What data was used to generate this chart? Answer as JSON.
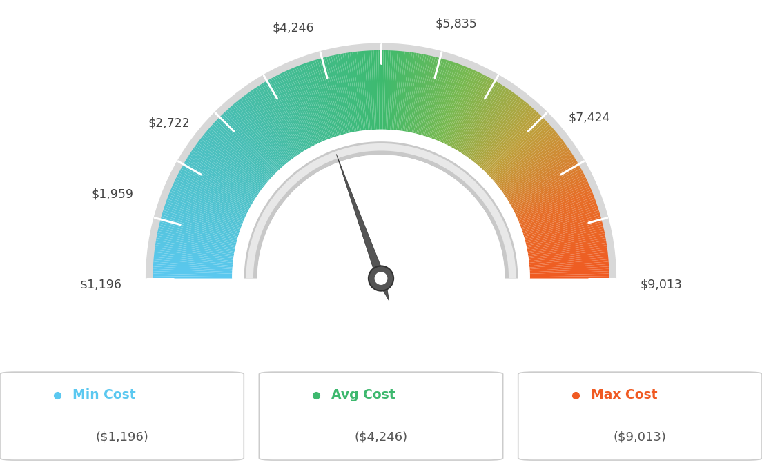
{
  "min_value": 1196,
  "max_value": 9013,
  "avg_value": 4246,
  "labels": [
    "$1,196",
    "$1,959",
    "$2,722",
    "$4,246",
    "$5,835",
    "$7,424",
    "$9,013"
  ],
  "label_values": [
    1196,
    1959,
    2722,
    4246,
    5835,
    7424,
    9013
  ],
  "legend_min_label": "Min Cost",
  "legend_avg_label": "Avg Cost",
  "legend_max_label": "Max Cost",
  "legend_min_value": "($1,196)",
  "legend_avg_value": "($4,246)",
  "legend_max_value": "($9,013)",
  "min_color": "#5bc8f0",
  "avg_color": "#3db86e",
  "max_color": "#f05a22",
  "background_color": "#ffffff",
  "tick_count": 13,
  "color_stops": [
    [
      0.0,
      [
        91,
        200,
        240
      ]
    ],
    [
      0.25,
      [
        72,
        190,
        180
      ]
    ],
    [
      0.5,
      [
        61,
        186,
        110
      ]
    ],
    [
      0.625,
      [
        120,
        185,
        80
      ]
    ],
    [
      0.75,
      [
        190,
        160,
        60
      ]
    ],
    [
      0.875,
      [
        230,
        110,
        40
      ]
    ],
    [
      1.0,
      [
        240,
        90,
        34
      ]
    ]
  ]
}
